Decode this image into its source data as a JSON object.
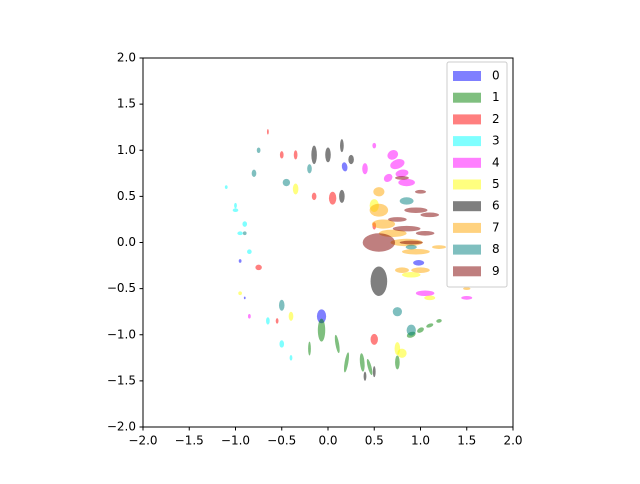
{
  "chart_data": {
    "type": "ellipse",
    "xlim": [
      -2,
      2
    ],
    "ylim": [
      -2,
      2
    ],
    "xticks": [
      {
        "value": -2,
        "label": "−2.0"
      },
      {
        "value": -1.5,
        "label": "−1.5"
      },
      {
        "value": -1,
        "label": "−1.0"
      },
      {
        "value": -0.5,
        "label": "−0.5"
      },
      {
        "value": 0,
        "label": "0.0"
      },
      {
        "value": 0.5,
        "label": "0.5"
      },
      {
        "value": 1,
        "label": "1.0"
      },
      {
        "value": 1.5,
        "label": "1.5"
      },
      {
        "value": 2,
        "label": "2.0"
      }
    ],
    "yticks": [
      {
        "value": -2,
        "label": "−2.0"
      },
      {
        "value": -1.5,
        "label": "−1.5"
      },
      {
        "value": -1,
        "label": "−1.0"
      },
      {
        "value": -0.5,
        "label": "−0.5"
      },
      {
        "value": 0,
        "label": "0.0"
      },
      {
        "value": 0.5,
        "label": "0.5"
      },
      {
        "value": 1,
        "label": "1.0"
      },
      {
        "value": 1.5,
        "label": "1.5"
      },
      {
        "value": 2,
        "label": "2.0"
      }
    ],
    "legend": "upper right",
    "alpha": 0.5,
    "series": [
      {
        "name": "0",
        "color": "#0000ff",
        "x": [
          -0.07,
          0.18,
          -0.95,
          0.98,
          -0.9
        ],
        "y": [
          -0.8,
          0.82,
          -0.2,
          -0.22,
          -0.6
        ],
        "width": [
          0.1,
          0.06,
          0.03,
          0.12,
          0.02
        ],
        "height": [
          0.15,
          0.1,
          0.04,
          0.06,
          0.03
        ],
        "angle": [
          0,
          10,
          0,
          0,
          0
        ]
      },
      {
        "name": "1",
        "color": "#008000",
        "x": [
          -0.07,
          0.1,
          0.2,
          0.37,
          0.45,
          0.9,
          1.0,
          1.1,
          1.2,
          0.75,
          -0.2
        ],
        "y": [
          -0.95,
          -1.1,
          -1.3,
          -1.3,
          -1.35,
          -1.0,
          -0.95,
          -0.9,
          -0.85,
          -1.3,
          -1.15
        ],
        "width": [
          0.08,
          0.04,
          0.04,
          0.05,
          0.04,
          0.1,
          0.08,
          0.08,
          0.06,
          0.05,
          0.03
        ],
        "height": [
          0.25,
          0.2,
          0.22,
          0.2,
          0.18,
          0.06,
          0.05,
          0.04,
          0.04,
          0.15,
          0.15
        ],
        "angle": [
          0,
          10,
          -10,
          5,
          15,
          20,
          30,
          20,
          10,
          0,
          0
        ]
      },
      {
        "name": "2",
        "color": "#ff0000",
        "x": [
          -0.65,
          -0.5,
          -0.35,
          -0.15,
          0.05,
          0.5,
          -0.75,
          -0.55,
          0.5
        ],
        "y": [
          1.2,
          0.95,
          0.95,
          0.5,
          0.48,
          -1.05,
          -0.27,
          -0.85,
          0.18
        ],
        "width": [
          0.02,
          0.04,
          0.04,
          0.05,
          0.08,
          0.08,
          0.07,
          0.03,
          0.04
        ],
        "height": [
          0.06,
          0.08,
          0.1,
          0.08,
          0.14,
          0.12,
          0.06,
          0.06,
          0.08
        ],
        "angle": [
          0,
          0,
          0,
          0,
          0,
          0,
          0,
          0,
          0
        ]
      },
      {
        "name": "3",
        "color": "#00ffff",
        "x": [
          -1.1,
          -1.0,
          -0.9,
          -0.95,
          -0.85,
          -0.65,
          -0.5,
          -0.4,
          -1.0
        ],
        "y": [
          0.6,
          0.35,
          0.2,
          0.1,
          -0.1,
          -0.85,
          -1.1,
          -1.25,
          0.4
        ],
        "width": [
          0.03,
          0.06,
          0.05,
          0.06,
          0.05,
          0.04,
          0.05,
          0.03,
          0.03
        ],
        "height": [
          0.04,
          0.04,
          0.06,
          0.04,
          0.05,
          0.08,
          0.08,
          0.06,
          0.06
        ],
        "angle": [
          0,
          0,
          0,
          0,
          0,
          0,
          0,
          0,
          0
        ]
      },
      {
        "name": "4",
        "color": "#ff00ff",
        "x": [
          0.7,
          0.75,
          0.8,
          0.65,
          0.85,
          0.5,
          0.4,
          1.05,
          1.5,
          -0.85
        ],
        "y": [
          0.95,
          0.85,
          0.75,
          0.7,
          0.65,
          1.05,
          0.8,
          -0.55,
          -0.6,
          -0.8
        ],
        "width": [
          0.12,
          0.16,
          0.14,
          0.1,
          0.18,
          0.04,
          0.06,
          0.2,
          0.12,
          0.03
        ],
        "height": [
          0.1,
          0.1,
          0.08,
          0.08,
          0.08,
          0.06,
          0.12,
          0.06,
          0.04,
          0.05
        ],
        "angle": [
          30,
          20,
          10,
          40,
          0,
          0,
          0,
          0,
          0,
          0
        ]
      },
      {
        "name": "5",
        "color": "#ffff00",
        "x": [
          -0.35,
          0.5,
          0.9,
          0.8,
          0.75,
          -0.95,
          -0.4,
          1.1
        ],
        "y": [
          0.58,
          0.4,
          -0.35,
          -1.2,
          -1.15,
          -0.55,
          -0.8,
          -0.6
        ],
        "width": [
          0.06,
          0.1,
          0.2,
          0.1,
          0.06,
          0.04,
          0.05,
          0.12
        ],
        "height": [
          0.12,
          0.14,
          0.06,
          0.1,
          0.14,
          0.04,
          0.1,
          0.05
        ],
        "angle": [
          0,
          0,
          0,
          0,
          0,
          0,
          0,
          0
        ]
      },
      {
        "name": "6",
        "color": "#000000",
        "x": [
          0.55,
          0.15,
          -0.15,
          0.0,
          0.15,
          0.25,
          0.5,
          0.4
        ],
        "y": [
          -0.42,
          0.5,
          0.95,
          0.95,
          1.05,
          0.9,
          -1.4,
          -1.45
        ],
        "width": [
          0.18,
          0.06,
          0.06,
          0.06,
          0.04,
          0.06,
          0.03,
          0.03
        ],
        "height": [
          0.32,
          0.14,
          0.2,
          0.16,
          0.14,
          0.1,
          0.12,
          0.1
        ],
        "angle": [
          0,
          0,
          0,
          0,
          0,
          0,
          0,
          0
        ]
      },
      {
        "name": "7",
        "color": "#ffa500",
        "x": [
          0.55,
          0.6,
          0.7,
          0.85,
          0.95,
          1.0,
          0.8,
          1.2,
          1.5,
          0.55
        ],
        "y": [
          0.35,
          0.2,
          0.1,
          0.0,
          -0.1,
          -0.3,
          -0.3,
          -0.05,
          -0.5,
          0.55
        ],
        "width": [
          0.2,
          0.25,
          0.3,
          0.35,
          0.3,
          0.2,
          0.15,
          0.15,
          0.08,
          0.12
        ],
        "height": [
          0.14,
          0.1,
          0.08,
          0.08,
          0.06,
          0.06,
          0.06,
          0.04,
          0.03,
          0.1
        ],
        "angle": [
          0,
          0,
          0,
          0,
          0,
          0,
          0,
          0,
          0,
          0
        ]
      },
      {
        "name": "8",
        "color": "#008080",
        "x": [
          -0.75,
          -0.8,
          -0.45,
          -0.2,
          0.85,
          0.9,
          0.9,
          0.75,
          -0.5,
          -0.9
        ],
        "y": [
          1.0,
          0.75,
          0.65,
          0.8,
          0.45,
          -0.05,
          -0.95,
          -0.75,
          -0.68,
          0.1
        ],
        "width": [
          0.04,
          0.05,
          0.08,
          0.05,
          0.15,
          0.12,
          0.1,
          0.1,
          0.06,
          0.04
        ],
        "height": [
          0.06,
          0.08,
          0.08,
          0.1,
          0.08,
          0.05,
          0.12,
          0.1,
          0.12,
          0.04
        ],
        "angle": [
          0,
          0,
          0,
          0,
          0,
          0,
          0,
          0,
          0,
          0
        ]
      },
      {
        "name": "9",
        "color": "#800000",
        "x": [
          0.55,
          0.95,
          1.1,
          0.85,
          1.05,
          1.0,
          0.8,
          0.75,
          0.9
        ],
        "y": [
          0.0,
          0.35,
          0.3,
          0.15,
          0.1,
          0.55,
          0.7,
          0.25,
          0.0
        ],
        "width": [
          0.35,
          0.25,
          0.2,
          0.3,
          0.2,
          0.12,
          0.15,
          0.2,
          0.25
        ],
        "height": [
          0.2,
          0.06,
          0.05,
          0.06,
          0.05,
          0.04,
          0.04,
          0.05,
          0.04
        ],
        "angle": [
          0,
          0,
          0,
          0,
          0,
          0,
          0,
          0,
          0
        ]
      }
    ]
  }
}
